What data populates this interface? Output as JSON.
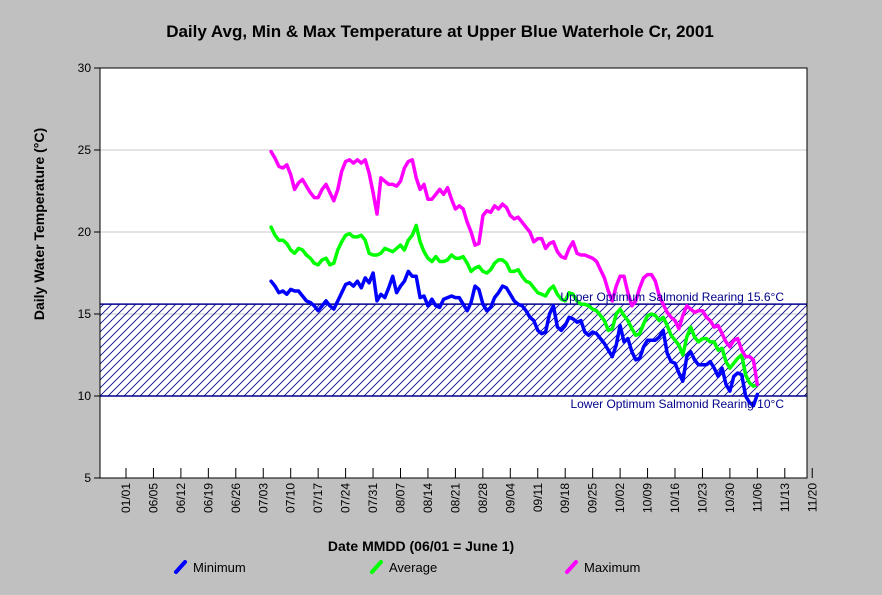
{
  "chart_data": {
    "type": "line",
    "title": "Daily Avg, Min & Max Temperature at Upper Blue Waterhole Cr, 2001",
    "xlabel": "Date MMDD (06/01 = June 1)",
    "ylabel": "Daily Water Temperature (°C)",
    "ylim": [
      5,
      30
    ],
    "yticks": [
      5,
      10,
      15,
      20,
      25,
      30
    ],
    "xticks": [
      "01/01",
      "06/05",
      "06/12",
      "06/19",
      "06/26",
      "07/03",
      "07/10",
      "07/17",
      "07/24",
      "07/31",
      "08/07",
      "08/14",
      "08/21",
      "08/28",
      "09/04",
      "09/11",
      "09/18",
      "09/25",
      "10/02",
      "10/09",
      "10/16",
      "10/23",
      "10/30",
      "11/06",
      "11/13",
      "11/20"
    ],
    "grid": true,
    "legend_position": "bottom",
    "reference_band": {
      "upper": 15.6,
      "lower": 10,
      "upper_label": "Upper Optimum Salmonid Rearing 15.6°C",
      "lower_label": "Lower Optimum Salmonid Rearing 10°C",
      "color": "#00008b"
    },
    "x_start": "07/05",
    "series": [
      {
        "name": "Minimum",
        "color": "#0000ff",
        "values": [
          17.0,
          16.7,
          16.3,
          16.4,
          16.2,
          16.5,
          16.4,
          16.4,
          16.1,
          15.8,
          15.7,
          15.5,
          15.2,
          15.5,
          15.8,
          15.5,
          15.3,
          15.8,
          16.3,
          16.8,
          16.9,
          16.7,
          17.0,
          16.6,
          17.2,
          16.9,
          17.5,
          15.8,
          16.2,
          16.0,
          16.6,
          17.3,
          16.3,
          16.7,
          17.0,
          17.6,
          17.3,
          17.3,
          16.0,
          16.1,
          15.5,
          15.9,
          15.5,
          15.4,
          15.9,
          16.0,
          16.1,
          16.0,
          16.0,
          15.6,
          15.2,
          15.7,
          16.7,
          16.5,
          15.6,
          15.2,
          15.4,
          16.0,
          16.3,
          16.7,
          16.6,
          16.2,
          15.8,
          15.6,
          15.5,
          15.2,
          14.8,
          14.6,
          14.0,
          13.8,
          13.9,
          15.0,
          15.5,
          14.2,
          14.0,
          14.3,
          14.8,
          14.7,
          14.5,
          14.6,
          13.9,
          13.7,
          13.9,
          13.8,
          13.5,
          13.2,
          12.8,
          12.4,
          13.1,
          14.3,
          13.3,
          13.5,
          12.7,
          12.2,
          12.3,
          13.0,
          13.4,
          13.4,
          13.4,
          13.6,
          14.0,
          12.6,
          12.1,
          12.0,
          11.4,
          10.9,
          12.4,
          12.7,
          12.2,
          11.9,
          11.9,
          11.9,
          12.1,
          11.7,
          11.2,
          11.7,
          10.7,
          10.3,
          11.2,
          11.4,
          11.3,
          10.0,
          9.6,
          9.4,
          10.1
        ]
      },
      {
        "name": "Average",
        "color": "#00ff00",
        "values": [
          20.3,
          19.8,
          19.5,
          19.5,
          19.3,
          18.9,
          18.7,
          19.0,
          18.9,
          18.6,
          18.4,
          18.1,
          18.0,
          18.3,
          18.4,
          18.0,
          18.1,
          18.9,
          19.4,
          19.8,
          19.9,
          19.7,
          19.7,
          19.8,
          19.5,
          18.7,
          18.6,
          18.6,
          18.7,
          19.0,
          18.9,
          18.8,
          19.0,
          19.2,
          18.9,
          19.5,
          19.8,
          20.4,
          19.4,
          18.8,
          18.4,
          18.2,
          18.5,
          18.2,
          18.2,
          18.3,
          18.6,
          18.4,
          18.4,
          18.5,
          18.1,
          17.6,
          17.8,
          17.9,
          17.6,
          17.5,
          17.7,
          18.1,
          18.3,
          18.3,
          18.1,
          17.6,
          17.6,
          17.7,
          17.3,
          17.0,
          16.9,
          16.6,
          16.3,
          16.2,
          16.1,
          16.5,
          16.7,
          16.2,
          15.9,
          15.8,
          16.3,
          16.2,
          15.8,
          15.6,
          15.6,
          15.5,
          15.3,
          15.2,
          14.9,
          14.6,
          14.0,
          14.1,
          15.0,
          15.3,
          14.9,
          14.6,
          14.1,
          13.7,
          13.8,
          14.4,
          14.9,
          15.0,
          14.9,
          14.6,
          14.8,
          14.3,
          13.7,
          13.4,
          13.1,
          12.5,
          13.6,
          14.2,
          13.6,
          13.3,
          13.5,
          13.5,
          13.3,
          13.3,
          12.8,
          12.9,
          12.1,
          11.7,
          12.0,
          12.3,
          12.5,
          11.3,
          10.8,
          10.6,
          10.7
        ]
      },
      {
        "name": "Maximum",
        "color": "#ff00ff",
        "values": [
          24.9,
          24.5,
          24.0,
          23.9,
          24.1,
          23.5,
          22.6,
          23.0,
          23.2,
          22.8,
          22.4,
          22.1,
          22.1,
          22.6,
          22.9,
          22.4,
          21.9,
          22.6,
          23.7,
          24.3,
          24.4,
          24.2,
          24.4,
          24.2,
          24.4,
          23.6,
          22.4,
          21.1,
          23.3,
          23.1,
          22.9,
          22.9,
          22.8,
          23.1,
          23.9,
          24.3,
          24.4,
          23.3,
          22.6,
          22.9,
          22.0,
          22.0,
          22.3,
          22.6,
          22.3,
          22.7,
          22.0,
          21.4,
          21.6,
          21.4,
          20.6,
          20.0,
          19.2,
          19.3,
          21.0,
          21.3,
          21.2,
          21.6,
          21.4,
          21.7,
          21.5,
          21.0,
          20.8,
          20.9,
          20.6,
          20.3,
          20.0,
          19.4,
          19.6,
          19.6,
          19.0,
          19.3,
          19.4,
          18.8,
          18.5,
          18.4,
          19.0,
          19.4,
          18.7,
          18.6,
          18.6,
          18.5,
          18.4,
          18.2,
          17.7,
          17.2,
          16.4,
          15.8,
          16.7,
          17.3,
          17.3,
          16.3,
          15.5,
          15.8,
          16.6,
          17.2,
          17.4,
          17.4,
          17.0,
          16.1,
          15.6,
          15.1,
          14.8,
          14.6,
          14.1,
          14.9,
          15.5,
          15.3,
          15.1,
          15.2,
          15.2,
          14.8,
          14.6,
          14.2,
          14.3,
          13.8,
          13.3,
          13.0,
          13.4,
          13.5,
          12.8,
          12.4,
          12.4,
          12.2,
          10.7
        ]
      }
    ]
  }
}
